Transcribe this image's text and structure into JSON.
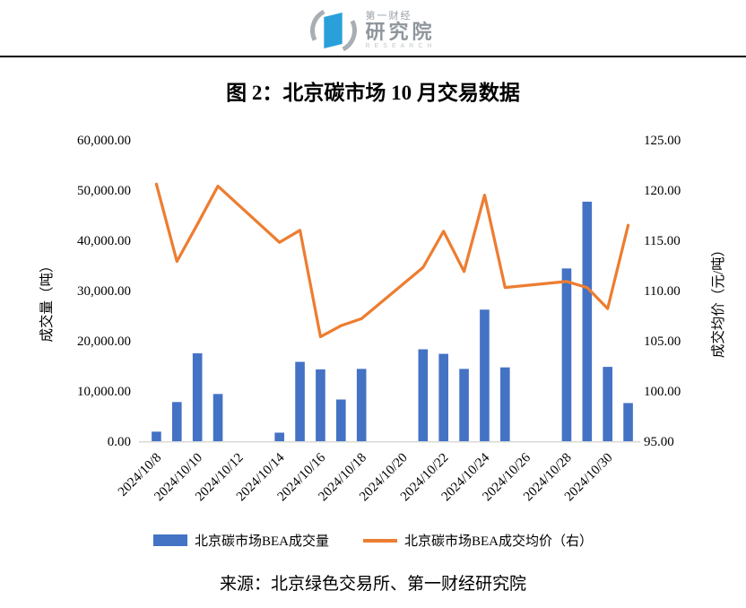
{
  "logo": {
    "line1": "第一财经",
    "line2": "研究院",
    "line3": "RESEARCH"
  },
  "chart_data": {
    "type": "combo",
    "title": "图 2：北京碳市场 10 月交易数据",
    "x_slots": [
      "2024/10/8",
      "2024/10/9",
      "2024/10/10",
      "2024/10/11",
      "2024/10/12",
      "2024/10/13",
      "2024/10/14",
      "2024/10/15",
      "2024/10/16",
      "2024/10/17",
      "2024/10/18",
      "2024/10/19",
      "2024/10/20",
      "2024/10/21",
      "2024/10/22",
      "2024/10/23",
      "2024/10/24",
      "2024/10/25",
      "2024/10/26",
      "2024/10/27",
      "2024/10/28",
      "2024/10/29",
      "2024/10/30",
      "2024/10/31"
    ],
    "x_tick_labels": [
      "2024/10/8",
      "2024/10/10",
      "2024/10/12",
      "2024/10/14",
      "2024/10/16",
      "2024/10/18",
      "2024/10/20",
      "2024/10/22",
      "2024/10/24",
      "2024/10/26",
      "2024/10/28",
      "2024/10/30"
    ],
    "left_axis": {
      "label": "成交量（吨）",
      "min": 0,
      "max": 60000,
      "step": 10000,
      "ticks": [
        "0.00",
        "10,000.00",
        "20,000.00",
        "30,000.00",
        "40,000.00",
        "50,000.00",
        "60,000.00"
      ]
    },
    "right_axis": {
      "label": "成交均价（元/吨）",
      "min": 95,
      "max": 125,
      "step": 5,
      "ticks": [
        "95.00",
        "100.00",
        "105.00",
        "110.00",
        "115.00",
        "120.00",
        "125.00"
      ]
    },
    "series": [
      {
        "name": "北京碳市场BEA成交量",
        "type": "bar",
        "axis": "left",
        "color": "#4472C4",
        "values": [
          1900,
          7800,
          17500,
          9400,
          null,
          null,
          1700,
          15800,
          14300,
          8300,
          14400,
          null,
          null,
          18300,
          17400,
          14400,
          26200,
          14700,
          null,
          null,
          34400,
          47700,
          14800,
          7600
        ]
      },
      {
        "name": "北京碳市场BEA成交均价（右）",
        "type": "line",
        "axis": "right",
        "color": "#ED7D31",
        "values": [
          120.6,
          112.9,
          116.6,
          120.4,
          null,
          null,
          114.8,
          116.0,
          105.4,
          106.5,
          107.2,
          null,
          null,
          112.3,
          115.9,
          111.9,
          119.5,
          110.3,
          null,
          null,
          110.9,
          110.3,
          108.2,
          116.5
        ]
      }
    ],
    "legend_position": "bottom",
    "gridlines": false,
    "axis_line_color": "#D9D9D9"
  },
  "source": "来源：北京绿色交易所、第一财经研究院"
}
